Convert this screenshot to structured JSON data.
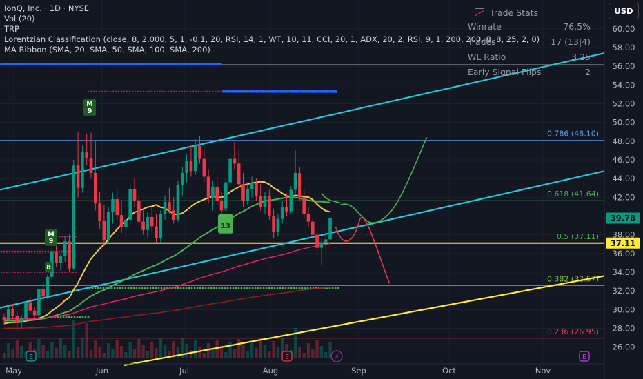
{
  "header": {
    "symbol_line": "IonQ, Inc. · 1D · NYSE",
    "indicators": [
      "Vol (20)",
      "TRP",
      "Lorentzian Classification (close, 8, 2,000, 5, 1, -0.1, 20, RSI, 14, 1, WT, 10, 11, CCI, 20, 1, ADX, 20, 2, RSI, 9, 1, 200, 200, 8, 8, 25, 2, 0)",
      "MA Ribbon (SMA, 20, SMA, 50, SMA, 100, SMA, 200)"
    ]
  },
  "trade_stats": {
    "title": "Trade Stats",
    "rows": [
      {
        "label": "Winrate",
        "value": "76.5%"
      },
      {
        "label": "Trades",
        "value": "17 (13|4)"
      },
      {
        "label": "WL Ratio",
        "value": "3.25"
      },
      {
        "label": "Early Signal Flips",
        "value": "2"
      }
    ]
  },
  "currency_button": "USD",
  "colors": {
    "background": "#131722",
    "up_candle": "#089981",
    "down_candle": "#f23645",
    "trendline_cyan": "#26c6da",
    "trendline_yellow": "#ffeb3b",
    "sma20": "#f7c948",
    "sma50": "#4caf50",
    "sma100": "#e91e63",
    "sma200": "#b71c1c",
    "projection_green": "#4caf50",
    "projection_red": "#f23645",
    "signal_blue": "#2962ff"
  },
  "chart_data": {
    "type": "candlestick",
    "y_axis_ticks": [
      26,
      28,
      30,
      32,
      34,
      36,
      38,
      40,
      42,
      44,
      46,
      48,
      50,
      52,
      54,
      56,
      58,
      60
    ],
    "ylim": [
      24.8,
      62.5
    ],
    "x_axis_labels": [
      "May",
      "Jun",
      "Jul",
      "Aug",
      "Sep",
      "Oct",
      "Nov"
    ],
    "price_labels": [
      {
        "value": 39.78,
        "text": "39.78",
        "color": "#089981"
      },
      {
        "value": 37.11,
        "text": "37.11",
        "color": "#ffeb3b"
      }
    ],
    "fibonacci": [
      {
        "level": "0.786",
        "value": 48.1,
        "label": "0.786 (48.10)",
        "color": "#5b9cf6"
      },
      {
        "level": "0.618",
        "value": 41.64,
        "label": "0.618 (41.64)",
        "color": "#4caf50"
      },
      {
        "level": "0.5",
        "value": 37.11,
        "label": "0.5 (37.11)",
        "color": "#4caf50"
      },
      {
        "level": "0.382",
        "value": 32.57,
        "label": "0.382 (32.57)",
        "color": "#8bc34a"
      },
      {
        "level": "0.236",
        "value": 26.95,
        "label": "0.236 (26.95)",
        "color": "#f23645"
      }
    ],
    "candles": [
      [
        29.2,
        29.6,
        28.4,
        28.9
      ],
      [
        28.9,
        30.4,
        28.6,
        30.1
      ],
      [
        30.1,
        30.6,
        29.0,
        29.3
      ],
      [
        29.3,
        29.8,
        28.2,
        28.6
      ],
      [
        28.6,
        29.4,
        28.0,
        29.1
      ],
      [
        29.1,
        31.2,
        28.9,
        30.8
      ],
      [
        30.8,
        31.4,
        29.6,
        29.9
      ],
      [
        29.9,
        30.3,
        28.8,
        29.4
      ],
      [
        29.4,
        32.6,
        29.2,
        32.2
      ],
      [
        32.2,
        33.0,
        31.0,
        31.4
      ],
      [
        31.4,
        33.8,
        31.1,
        33.5
      ],
      [
        33.5,
        36.6,
        33.2,
        36.2
      ],
      [
        36.2,
        37.0,
        34.6,
        35.0
      ],
      [
        35.0,
        36.0,
        34.2,
        35.7
      ],
      [
        35.7,
        37.8,
        35.1,
        37.3
      ],
      [
        37.3,
        38.0,
        34.0,
        34.4
      ],
      [
        34.4,
        46.0,
        34.2,
        45.4
      ],
      [
        45.4,
        49.0,
        42.0,
        43.0
      ],
      [
        43.0,
        47.5,
        42.5,
        46.8
      ],
      [
        46.8,
        48.8,
        45.4,
        46.2
      ],
      [
        46.2,
        48.9,
        44.0,
        44.6
      ],
      [
        44.6,
        48.0,
        40.6,
        41.4
      ],
      [
        41.4,
        42.6,
        38.6,
        39.5
      ],
      [
        39.5,
        41.2,
        36.8,
        37.4
      ],
      [
        37.4,
        41.0,
        37.0,
        40.4
      ],
      [
        40.4,
        42.5,
        39.2,
        41.8
      ],
      [
        41.8,
        42.8,
        39.6,
        40.1
      ],
      [
        40.1,
        41.6,
        38.2,
        38.8
      ],
      [
        38.8,
        40.2,
        37.6,
        39.6
      ],
      [
        39.6,
        43.4,
        39.2,
        42.9
      ],
      [
        42.9,
        44.0,
        41.0,
        41.6
      ],
      [
        41.6,
        42.2,
        39.0,
        39.4
      ],
      [
        39.4,
        40.6,
        38.0,
        38.5
      ],
      [
        38.5,
        40.4,
        37.6,
        39.9
      ],
      [
        39.9,
        41.0,
        38.4,
        38.9
      ],
      [
        38.9,
        40.2,
        37.2,
        37.6
      ],
      [
        37.6,
        40.6,
        37.2,
        40.2
      ],
      [
        40.2,
        42.2,
        39.6,
        41.5
      ],
      [
        41.5,
        43.0,
        40.2,
        40.6
      ],
      [
        40.6,
        42.0,
        39.2,
        39.6
      ],
      [
        39.6,
        43.8,
        39.4,
        43.3
      ],
      [
        43.3,
        45.2,
        42.2,
        44.6
      ],
      [
        44.6,
        46.6,
        43.6,
        45.9
      ],
      [
        45.9,
        47.6,
        44.2,
        44.8
      ],
      [
        44.8,
        48.2,
        44.4,
        47.5
      ],
      [
        47.5,
        48.5,
        45.6,
        46.1
      ],
      [
        46.1,
        47.2,
        43.6,
        44.2
      ],
      [
        44.2,
        45.0,
        41.4,
        41.9
      ],
      [
        41.9,
        43.8,
        40.6,
        43.1
      ],
      [
        43.1,
        44.2,
        41.2,
        41.6
      ],
      [
        41.6,
        42.6,
        40.0,
        40.6
      ],
      [
        40.6,
        44.0,
        40.4,
        43.6
      ],
      [
        43.6,
        46.6,
        43.2,
        46.1
      ],
      [
        46.1,
        47.9,
        45.0,
        45.6
      ],
      [
        45.6,
        47.0,
        42.8,
        43.4
      ],
      [
        43.4,
        44.6,
        41.0,
        41.6
      ],
      [
        41.6,
        43.6,
        41.2,
        42.9
      ],
      [
        42.9,
        44.2,
        42.0,
        43.5
      ],
      [
        43.5,
        44.0,
        41.6,
        42.1
      ],
      [
        42.1,
        43.4,
        40.6,
        41.0
      ],
      [
        41.0,
        42.6,
        40.2,
        42.1
      ],
      [
        42.1,
        42.8,
        39.6,
        40.0
      ],
      [
        40.0,
        40.8,
        37.6,
        38.3
      ],
      [
        38.3,
        40.2,
        37.8,
        39.7
      ],
      [
        39.7,
        41.6,
        39.2,
        41.0
      ],
      [
        41.0,
        42.4,
        40.0,
        40.5
      ],
      [
        40.5,
        43.2,
        40.2,
        42.8
      ],
      [
        42.8,
        47.0,
        42.4,
        44.6
      ],
      [
        44.6,
        45.2,
        41.6,
        42.0
      ],
      [
        42.0,
        42.8,
        39.8,
        40.2
      ],
      [
        40.2,
        41.0,
        38.8,
        39.4
      ],
      [
        39.4,
        39.8,
        37.6,
        38.0
      ],
      [
        38.0,
        38.6,
        35.8,
        36.6
      ],
      [
        36.6,
        37.6,
        34.8,
        37.2
      ],
      [
        37.2,
        38.4,
        36.4,
        37.5
      ],
      [
        37.5,
        40.4,
        37.2,
        39.78
      ]
    ]
  }
}
